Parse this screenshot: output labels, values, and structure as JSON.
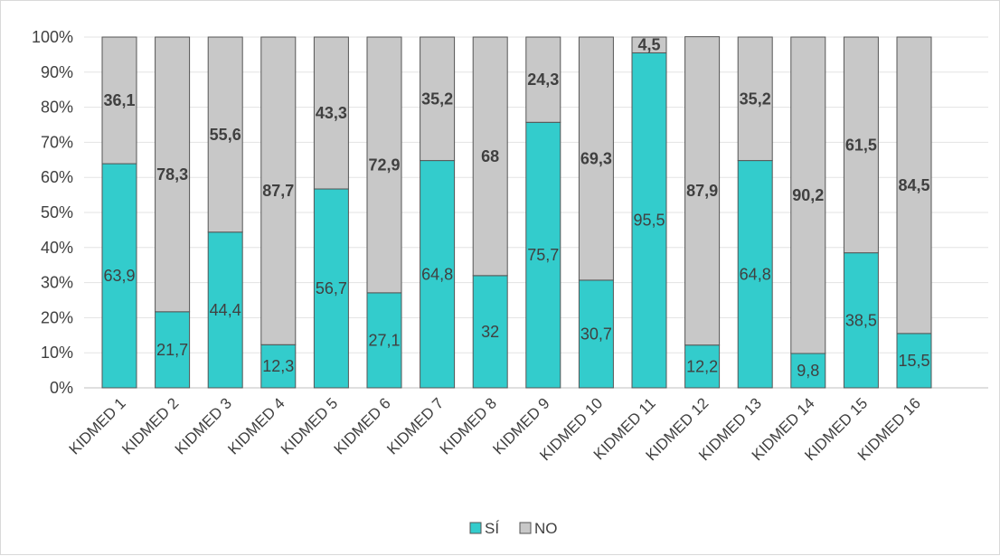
{
  "chart_data": {
    "type": "bar",
    "stacked": "percent",
    "title": "",
    "xlabel": "",
    "ylabel": "",
    "ylim": [
      0,
      100
    ],
    "y_ticks": [
      "0%",
      "10%",
      "20%",
      "30%",
      "40%",
      "50%",
      "60%",
      "70%",
      "80%",
      "90%",
      "100%"
    ],
    "grid": true,
    "legend_position": "bottom",
    "categories": [
      "KIDMED 1",
      "KIDMED 2",
      "KIDMED 3",
      "KIDMED 4",
      "KIDMED 5",
      "KIDMED 6",
      "KIDMED 7",
      "KIDMED 8",
      "KIDMED 9",
      "KIDMED 10",
      "KIDMED 11",
      "KIDMED 12",
      "KIDMED 13",
      "KIDMED 14",
      "KIDMED 15",
      "KIDMED 16"
    ],
    "series": [
      {
        "name": "SÍ",
        "color": "#33CCCC",
        "values": [
          63.9,
          21.7,
          44.4,
          12.3,
          56.7,
          27.1,
          64.8,
          32,
          75.7,
          30.7,
          95.5,
          12.2,
          64.8,
          9.8,
          38.5,
          15.5
        ],
        "labels": [
          "63,9",
          "21,7",
          "44,4",
          "12,3",
          "56,7",
          "27,1",
          "64,8",
          "32",
          "75,7",
          "30,7",
          "95,5",
          "12,2",
          "64,8",
          "9,8",
          "38,5",
          "15,5"
        ]
      },
      {
        "name": "NO",
        "color": "#C8C8C8",
        "values": [
          36.1,
          78.3,
          55.6,
          87.7,
          43.3,
          72.9,
          35.2,
          68,
          24.3,
          69.3,
          4.5,
          87.9,
          35.2,
          90.2,
          61.5,
          84.5
        ],
        "labels": [
          "36,1",
          "78,3",
          "55,6",
          "87,7",
          "43,3",
          "72,9",
          "35,2",
          "68",
          "24,3",
          "69,3",
          "4,5",
          "87,9",
          "35,2",
          "90,2",
          "61,5",
          "84,5"
        ]
      }
    ]
  }
}
